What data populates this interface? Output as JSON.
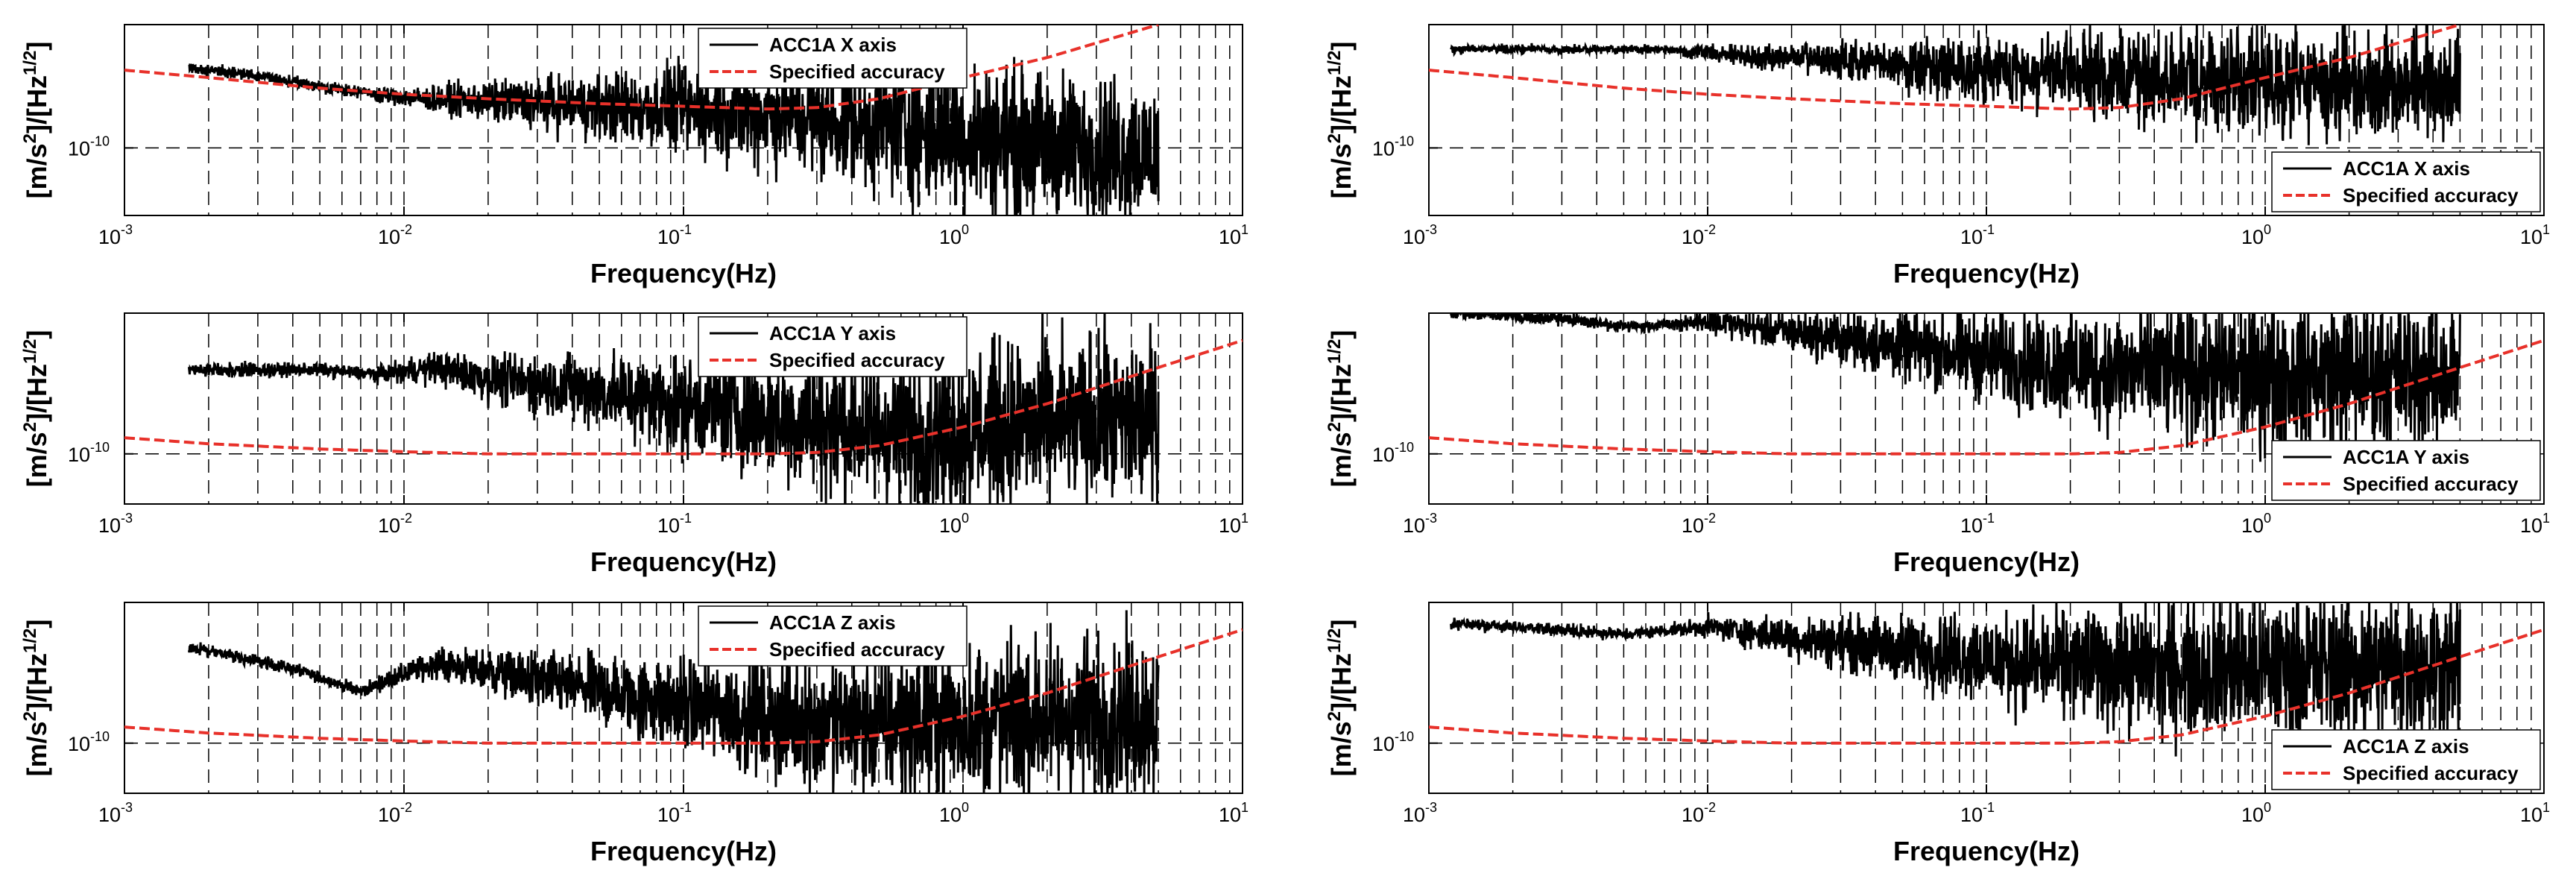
{
  "figure": {
    "x_label": "Frequency(Hz)",
    "y_label": "[m/s²]/[Hz¹ᐟ²]",
    "y_label_base_1": "[m/s",
    "y_label_sup_1": "2",
    "y_label_base_2": "]/[Hz",
    "y_label_sup_2": "1/2",
    "y_label_base_3": "]",
    "tick_base": "10",
    "legend_reference": "Specified accuracy",
    "colors": {
      "measured": "#000000",
      "reference": "#e8312a",
      "grid": "#000000"
    }
  },
  "chart_data": [
    {
      "type": "line",
      "axis": "X",
      "column": "left",
      "title": "",
      "xlabel": "Frequency(Hz)",
      "ylabel": "[m/s²]/[Hz¹ᐟ²]",
      "x_scale": "log",
      "y_scale": "log",
      "xlim": [
        0.001,
        10
      ],
      "ylim": [
        3e-11,
        9e-10
      ],
      "x_ticks": [
        {
          "base": "10",
          "exp": "-3"
        },
        {
          "base": "10",
          "exp": "-2"
        },
        {
          "base": "10",
          "exp": "-1"
        },
        {
          "base": "10",
          "exp": "0"
        },
        {
          "base": "10",
          "exp": "1"
        }
      ],
      "y_tick": {
        "base": "10",
        "exp": "-10"
      },
      "legend_position": "top-center",
      "grid": "dashed",
      "series": [
        {
          "name": "ACC1A X axis",
          "noise": 1.0,
          "x": [
            0.0017,
            0.003,
            0.005,
            0.008,
            0.012,
            0.02,
            0.04,
            0.08,
            0.15,
            0.3,
            0.6,
            1,
            2,
            5
          ],
          "y": [
            4.2e-10,
            3.6e-10,
            3e-10,
            2.6e-10,
            2.4e-10,
            2.3e-10,
            2.15e-10,
            2e-10,
            1.9e-10,
            1.7e-10,
            1.45e-10,
            1.25e-10,
            1.05e-10,
            9e-11
          ]
        },
        {
          "name": "Specified accuracy",
          "x": [
            0.001,
            0.002,
            0.005,
            0.01,
            0.02,
            0.05,
            0.1,
            0.2,
            0.3,
            0.5,
            1,
            2,
            5
          ],
          "y": [
            4e-10,
            3.5e-10,
            2.9e-10,
            2.6e-10,
            2.4e-10,
            2.2e-10,
            2.1e-10,
            2e-10,
            2.05e-10,
            2.4e-10,
            3.5e-10,
            5e-10,
            9e-10
          ]
        }
      ]
    },
    {
      "type": "line",
      "axis": "Y",
      "column": "left",
      "title": "",
      "xlabel": "Frequency(Hz)",
      "ylabel": "[m/s²]/[Hz¹ᐟ²]",
      "x_scale": "log",
      "y_scale": "log",
      "xlim": [
        0.001,
        10
      ],
      "ylim": [
        5e-11,
        7e-10
      ],
      "x_ticks": [
        {
          "base": "10",
          "exp": "-3"
        },
        {
          "base": "10",
          "exp": "-2"
        },
        {
          "base": "10",
          "exp": "-1"
        },
        {
          "base": "10",
          "exp": "0"
        },
        {
          "base": "10",
          "exp": "1"
        }
      ],
      "y_tick": {
        "base": "10",
        "exp": "-10"
      },
      "legend_position": "top-center",
      "grid": "dashed",
      "series": [
        {
          "name": "ACC1A Y axis",
          "noise": 0.9,
          "x": [
            0.0017,
            0.005,
            0.008,
            0.013,
            0.02,
            0.04,
            0.08,
            0.15,
            0.3,
            0.6,
            1,
            2,
            5
          ],
          "y": [
            3.2e-10,
            3.2e-10,
            3e-10,
            3.3e-10,
            2.8e-10,
            2.5e-10,
            2.1e-10,
            1.8e-10,
            1.5e-10,
            1.35e-10,
            1.4e-10,
            1.5e-10,
            1.6e-10
          ]
        },
        {
          "name": "Specified accuracy",
          "x": [
            0.001,
            0.002,
            0.005,
            0.01,
            0.02,
            0.05,
            0.1,
            0.2,
            0.3,
            0.5,
            1,
            2,
            5,
            10
          ],
          "y": [
            1.25e-10,
            1.15e-10,
            1.07e-10,
            1.03e-10,
            1e-10,
            1e-10,
            1e-10,
            1e-10,
            1.02e-10,
            1.12e-10,
            1.45e-10,
            2e-10,
            3.3e-10,
            4.8e-10
          ]
        }
      ]
    },
    {
      "type": "line",
      "axis": "Z",
      "column": "left",
      "title": "",
      "xlabel": "Frequency(Hz)",
      "ylabel": "[m/s²]/[Hz¹ᐟ²]",
      "x_scale": "log",
      "y_scale": "log",
      "xlim": [
        0.001,
        10
      ],
      "ylim": [
        5e-11,
        7e-10
      ],
      "x_ticks": [
        {
          "base": "10",
          "exp": "-3"
        },
        {
          "base": "10",
          "exp": "-2"
        },
        {
          "base": "10",
          "exp": "-1"
        },
        {
          "base": "10",
          "exp": "0"
        },
        {
          "base": "10",
          "exp": "1"
        }
      ],
      "y_tick": {
        "base": "10",
        "exp": "-10"
      },
      "legend_position": "top-center",
      "grid": "dashed",
      "series": [
        {
          "name": "ACC1A Z axis",
          "noise": 0.85,
          "x": [
            0.0017,
            0.004,
            0.007,
            0.01,
            0.013,
            0.02,
            0.04,
            0.08,
            0.15,
            0.3,
            0.6,
            1,
            2,
            5
          ],
          "y": [
            3.8e-10,
            2.8e-10,
            2.05e-10,
            2.6e-10,
            3e-10,
            2.7e-10,
            2.2e-10,
            1.8e-10,
            1.5e-10,
            1.3e-10,
            1.3e-10,
            1.35e-10,
            1.4e-10,
            1.5e-10
          ]
        },
        {
          "name": "Specified accuracy",
          "x": [
            0.001,
            0.002,
            0.005,
            0.01,
            0.02,
            0.05,
            0.1,
            0.2,
            0.3,
            0.5,
            1,
            2,
            5,
            10
          ],
          "y": [
            1.25e-10,
            1.15e-10,
            1.07e-10,
            1.03e-10,
            1e-10,
            1e-10,
            1e-10,
            1e-10,
            1.02e-10,
            1.12e-10,
            1.45e-10,
            2e-10,
            3.3e-10,
            4.8e-10
          ]
        }
      ]
    },
    {
      "type": "line",
      "axis": "X",
      "column": "right",
      "title": "",
      "xlabel": "Frequency(Hz)",
      "ylabel": "[m/s²]/[Hz¹ᐟ²]",
      "x_scale": "log",
      "y_scale": "log",
      "xlim": [
        0.001,
        10
      ],
      "ylim": [
        3e-11,
        9e-10
      ],
      "x_ticks": [
        {
          "base": "10",
          "exp": "-3"
        },
        {
          "base": "10",
          "exp": "-2"
        },
        {
          "base": "10",
          "exp": "-1"
        },
        {
          "base": "10",
          "exp": "0"
        },
        {
          "base": "10",
          "exp": "1"
        }
      ],
      "y_tick": {
        "base": "10",
        "exp": "-10"
      },
      "legend_position": "bottom-right",
      "grid": "dashed",
      "series": [
        {
          "name": "ACC1A X axis",
          "noise": 0.75,
          "x": [
            0.0012,
            0.003,
            0.006,
            0.01,
            0.015,
            0.02,
            0.04,
            0.08,
            0.15,
            0.3,
            0.6,
            1,
            2,
            5
          ],
          "y": [
            5.8e-10,
            5.8e-10,
            5.8e-10,
            5.5e-10,
            5e-10,
            5e-10,
            4.5e-10,
            4.2e-10,
            3.8e-10,
            3.6e-10,
            3.4e-10,
            3.2e-10,
            3.2e-10,
            3.2e-10
          ]
        },
        {
          "name": "Specified accuracy",
          "x": [
            0.001,
            0.002,
            0.005,
            0.01,
            0.02,
            0.05,
            0.1,
            0.2,
            0.3,
            0.5,
            1,
            2,
            5
          ],
          "y": [
            4e-10,
            3.5e-10,
            2.9e-10,
            2.6e-10,
            2.4e-10,
            2.2e-10,
            2.1e-10,
            2e-10,
            2.05e-10,
            2.4e-10,
            3.5e-10,
            5e-10,
            9e-10
          ]
        }
      ]
    },
    {
      "type": "line",
      "axis": "Y",
      "column": "right",
      "title": "",
      "xlabel": "Frequency(Hz)",
      "ylabel": "[m/s²]/[Hz¹ᐟ²]",
      "x_scale": "log",
      "y_scale": "log",
      "xlim": [
        0.001,
        10
      ],
      "ylim": [
        5e-11,
        7e-10
      ],
      "x_ticks": [
        {
          "base": "10",
          "exp": "-3"
        },
        {
          "base": "10",
          "exp": "-2"
        },
        {
          "base": "10",
          "exp": "-1"
        },
        {
          "base": "10",
          "exp": "0"
        },
        {
          "base": "10",
          "exp": "1"
        }
      ],
      "y_tick": {
        "base": "10",
        "exp": "-10"
      },
      "legend_position": "bottom-right",
      "grid": "dashed",
      "series": [
        {
          "name": "ACC1A Y axis",
          "noise": 0.8,
          "x": [
            0.0012,
            0.003,
            0.005,
            0.01,
            0.02,
            0.04,
            0.08,
            0.15,
            0.3,
            0.6,
            1,
            2,
            5
          ],
          "y": [
            7e-10,
            6.5e-10,
            5.8e-10,
            6.2e-10,
            5.4e-10,
            4.6e-10,
            4e-10,
            3.5e-10,
            3.2e-10,
            3e-10,
            3e-10,
            3e-10,
            3e-10
          ]
        },
        {
          "name": "Specified accuracy",
          "x": [
            0.001,
            0.002,
            0.005,
            0.01,
            0.02,
            0.05,
            0.1,
            0.2,
            0.3,
            0.5,
            1,
            2,
            5,
            10
          ],
          "y": [
            1.25e-10,
            1.15e-10,
            1.07e-10,
            1.03e-10,
            1e-10,
            1e-10,
            1e-10,
            1e-10,
            1.02e-10,
            1.12e-10,
            1.45e-10,
            2e-10,
            3.3e-10,
            4.8e-10
          ]
        }
      ]
    },
    {
      "type": "line",
      "axis": "Z",
      "column": "right",
      "title": "",
      "xlabel": "Frequency(Hz)",
      "ylabel": "[m/s²]/[Hz¹ᐟ²]",
      "x_scale": "log",
      "y_scale": "log",
      "xlim": [
        0.001,
        10
      ],
      "ylim": [
        5e-11,
        7e-10
      ],
      "x_ticks": [
        {
          "base": "10",
          "exp": "-3"
        },
        {
          "base": "10",
          "exp": "-2"
        },
        {
          "base": "10",
          "exp": "-1"
        },
        {
          "base": "10",
          "exp": "0"
        },
        {
          "base": "10",
          "exp": "1"
        }
      ],
      "y_tick": {
        "base": "10",
        "exp": "-10"
      },
      "legend_position": "bottom-right",
      "grid": "dashed",
      "series": [
        {
          "name": "ACC1A Z axis",
          "noise": 0.8,
          "x": [
            0.0012,
            0.003,
            0.005,
            0.01,
            0.02,
            0.04,
            0.08,
            0.15,
            0.3,
            0.6,
            1,
            2,
            5
          ],
          "y": [
            5.2e-10,
            4.8e-10,
            4.5e-10,
            5e-10,
            4.3e-10,
            3.8e-10,
            3.4e-10,
            3e-10,
            2.9e-10,
            2.8e-10,
            2.8e-10,
            2.9e-10,
            3e-10
          ]
        },
        {
          "name": "Specified accuracy",
          "x": [
            0.001,
            0.002,
            0.005,
            0.01,
            0.02,
            0.05,
            0.1,
            0.2,
            0.3,
            0.5,
            1,
            2,
            5,
            10
          ],
          "y": [
            1.25e-10,
            1.15e-10,
            1.07e-10,
            1.03e-10,
            1e-10,
            1e-10,
            1e-10,
            1e-10,
            1.02e-10,
            1.12e-10,
            1.45e-10,
            2e-10,
            3.3e-10,
            4.8e-10
          ]
        }
      ]
    }
  ]
}
